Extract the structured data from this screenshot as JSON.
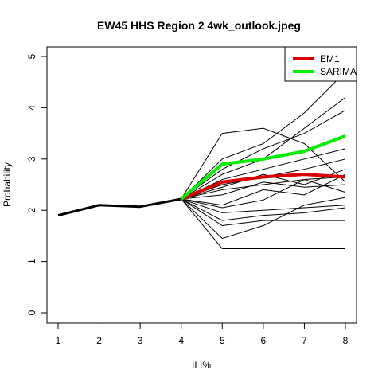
{
  "chart_data": {
    "type": "line",
    "title": "EW45 HHS Region 2 4wk_outlook.jpeg",
    "xlabel": "ILI%",
    "ylabel": "Probability",
    "xlim": [
      1,
      8
    ],
    "ylim": [
      0,
      5
    ],
    "x_ticks": [
      "1",
      "2",
      "3",
      "4",
      "5",
      "6",
      "7",
      "8"
    ],
    "y_ticks": [
      "0",
      "1",
      "2",
      "3",
      "4",
      "5"
    ],
    "grid": false,
    "legend_position": "top-right",
    "history": {
      "x": [
        1,
        2,
        3,
        4
      ],
      "values": [
        1.9,
        2.1,
        2.07,
        2.22
      ],
      "color": "#000000"
    },
    "trajectories": [
      {
        "x": [
          4,
          5,
          6,
          7,
          8
        ],
        "values": [
          2.22,
          3.5,
          3.6,
          3.3,
          2.55
        ]
      },
      {
        "x": [
          4,
          5,
          6,
          7,
          8
        ],
        "values": [
          2.22,
          3.0,
          3.3,
          3.9,
          4.7
        ]
      },
      {
        "x": [
          4,
          5,
          6,
          7,
          8
        ],
        "values": [
          2.22,
          2.7,
          3.0,
          3.6,
          4.2
        ]
      },
      {
        "x": [
          4,
          5,
          6,
          7,
          8
        ],
        "values": [
          2.22,
          2.8,
          3.2,
          3.5,
          3.95
        ]
      },
      {
        "x": [
          4,
          5,
          6,
          7,
          8
        ],
        "values": [
          2.22,
          2.6,
          2.8,
          3.0,
          3.2
        ]
      },
      {
        "x": [
          4,
          5,
          6,
          7,
          8
        ],
        "values": [
          2.22,
          2.5,
          2.65,
          2.8,
          3.0
        ]
      },
      {
        "x": [
          4,
          5,
          6,
          7,
          8
        ],
        "values": [
          2.22,
          2.45,
          2.7,
          2.5,
          2.8
        ]
      },
      {
        "x": [
          4,
          5,
          6,
          7,
          8
        ],
        "values": [
          2.22,
          2.4,
          2.5,
          2.6,
          2.65
        ]
      },
      {
        "x": [
          4,
          5,
          6,
          7,
          8
        ],
        "values": [
          2.22,
          2.3,
          2.55,
          2.45,
          2.5
        ]
      },
      {
        "x": [
          4,
          5,
          6,
          7,
          8
        ],
        "values": [
          2.22,
          2.1,
          2.4,
          2.3,
          2.7
        ]
      },
      {
        "x": [
          4,
          5,
          6,
          7,
          8
        ],
        "values": [
          2.22,
          2.05,
          2.2,
          2.6,
          2.35
        ]
      },
      {
        "x": [
          4,
          5,
          6,
          7,
          8
        ],
        "values": [
          2.22,
          1.95,
          2.0,
          2.05,
          2.1
        ]
      },
      {
        "x": [
          4,
          5,
          6,
          7,
          8
        ],
        "values": [
          2.22,
          1.8,
          1.9,
          1.95,
          2.05
        ]
      },
      {
        "x": [
          4,
          5,
          6,
          7,
          8
        ],
        "values": [
          2.22,
          1.7,
          1.8,
          1.8,
          1.8
        ]
      },
      {
        "x": [
          4,
          5,
          6,
          7,
          8
        ],
        "values": [
          2.22,
          1.45,
          1.7,
          2.1,
          2.25
        ]
      },
      {
        "x": [
          4,
          5,
          6,
          7,
          8
        ],
        "values": [
          2.22,
          1.25,
          1.25,
          1.25,
          1.25
        ]
      }
    ],
    "series": [
      {
        "name": "EM1",
        "x": [
          4,
          5,
          6,
          7,
          8
        ],
        "values": [
          2.22,
          2.55,
          2.65,
          2.7,
          2.65
        ],
        "color": "#dd0000"
      },
      {
        "name": "SARIMA",
        "x": [
          4,
          5,
          6,
          7,
          8
        ],
        "values": [
          2.22,
          2.9,
          3.0,
          3.15,
          3.45
        ],
        "color": "#00ee00"
      }
    ]
  }
}
